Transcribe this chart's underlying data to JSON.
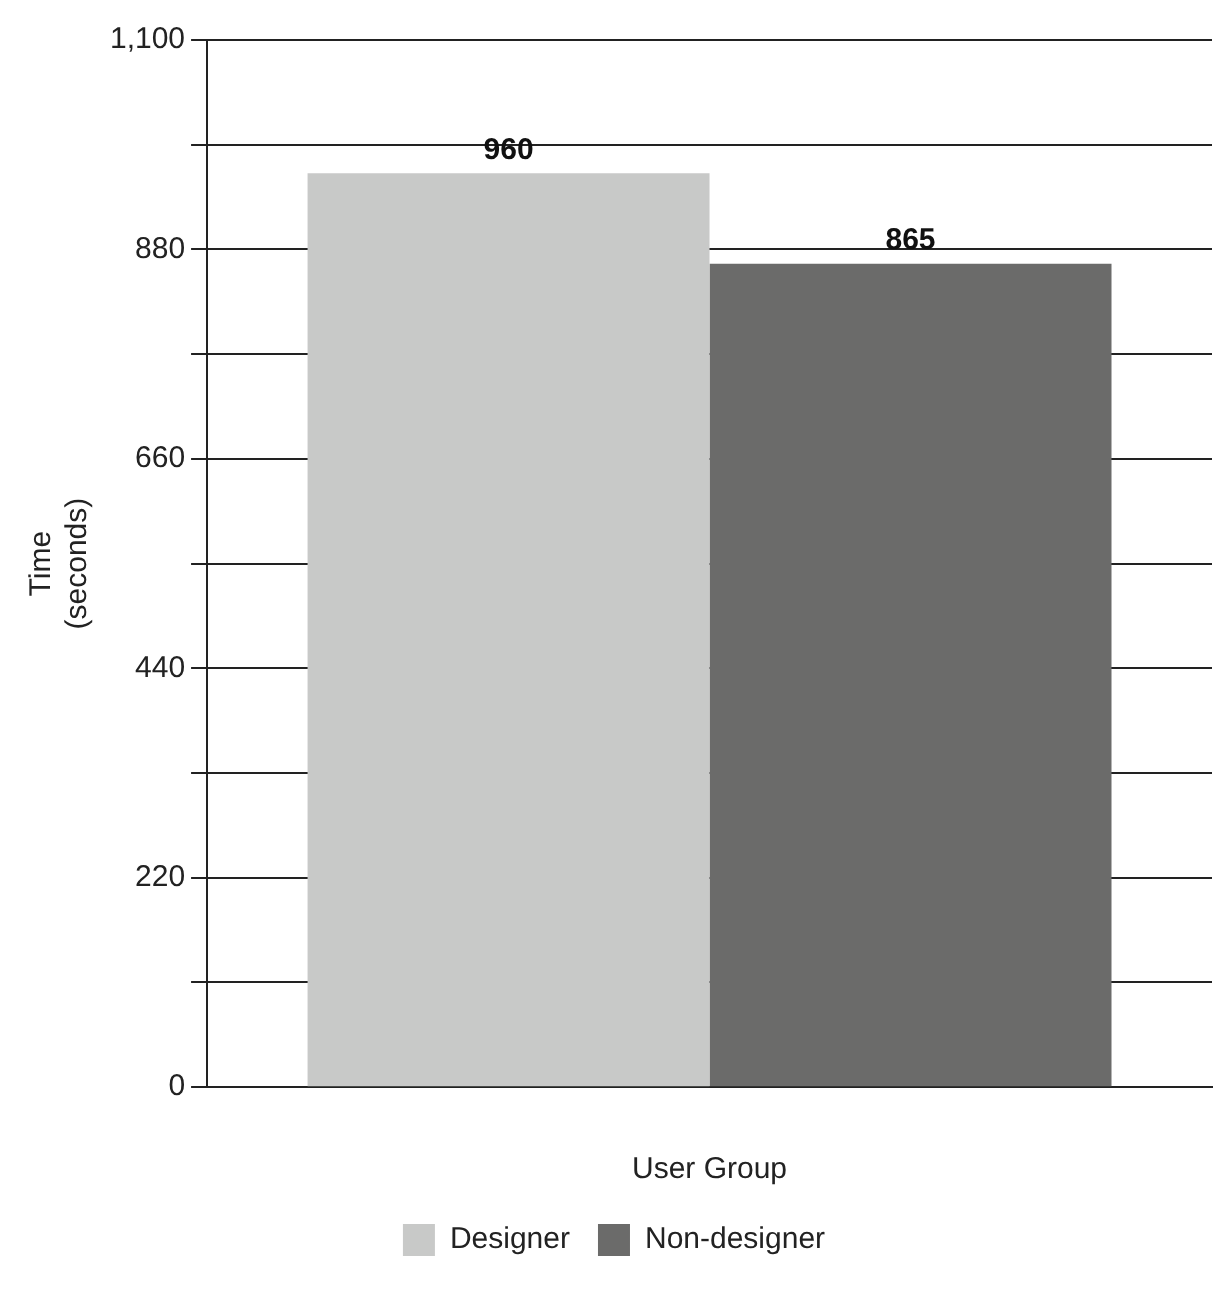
{
  "chart_data": {
    "type": "bar",
    "categories": [
      null
    ],
    "xlabel": "User Group",
    "ylabel": "Time\n(seconds)",
    "series": [
      {
        "name": "Designer",
        "color": "#c8c9c8",
        "values": [
          960
        ]
      },
      {
        "name": "Non-designer",
        "color": "#6b6b6a",
        "values": [
          865
        ]
      }
    ],
    "ylim": [
      0,
      1100
    ],
    "yticks": [
      0,
      {
        "value": 110,
        "label": null
      },
      220,
      {
        "value": 330,
        "label": null
      },
      440,
      {
        "value": 550,
        "label": null
      },
      660,
      {
        "value": 770,
        "label": null
      },
      880,
      {
        "value": 990,
        "label": null
      },
      "1,100"
    ],
    "grid": "y",
    "legend": "bottom",
    "data_labels": true
  }
}
